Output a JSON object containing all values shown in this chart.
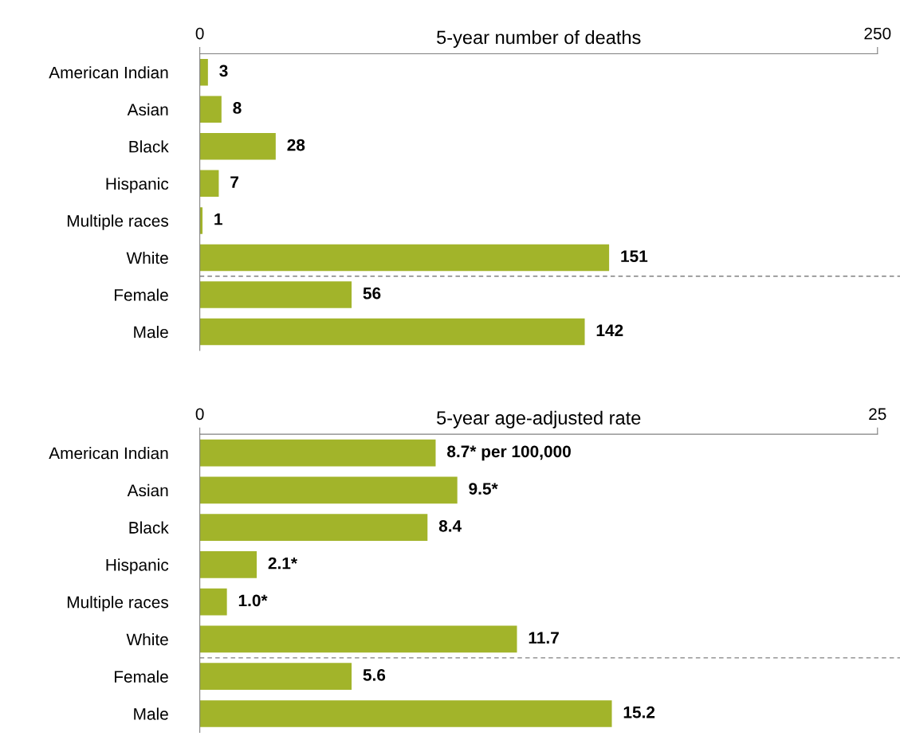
{
  "chart_data": [
    {
      "type": "bar",
      "orientation": "horizontal",
      "title": "5-year number of deaths",
      "categories": [
        "American Indian",
        "Asian",
        "Black",
        "Hispanic",
        "Multiple races",
        "White",
        "Female",
        "Male"
      ],
      "values": [
        3,
        8,
        28,
        7,
        1,
        151,
        56,
        142
      ],
      "color": "#a2b42a",
      "data_labels": true,
      "xlim": [
        0,
        250
      ],
      "xticks": [
        0,
        250
      ],
      "grid": false
    },
    {
      "type": "bar",
      "orientation": "horizontal",
      "title": "5-year age-adjusted rate",
      "categories": [
        "American Indian",
        "Asian",
        "Black",
        "Hispanic",
        "Multiple races",
        "White",
        "Female",
        "Male"
      ],
      "values": [
        8.7,
        9.5,
        8.4,
        2.1,
        1.0,
        11.7,
        5.6,
        15.2
      ],
      "color": "#a2b42a",
      "value_labels": [
        "8.7* per 100,000",
        "9.5*",
        "8.4",
        "2.1*",
        "1.0*",
        "11.7",
        "5.6",
        "15.2"
      ],
      "xlim": [
        0,
        25
      ],
      "xticks": [
        0,
        25
      ],
      "grid": false
    }
  ]
}
